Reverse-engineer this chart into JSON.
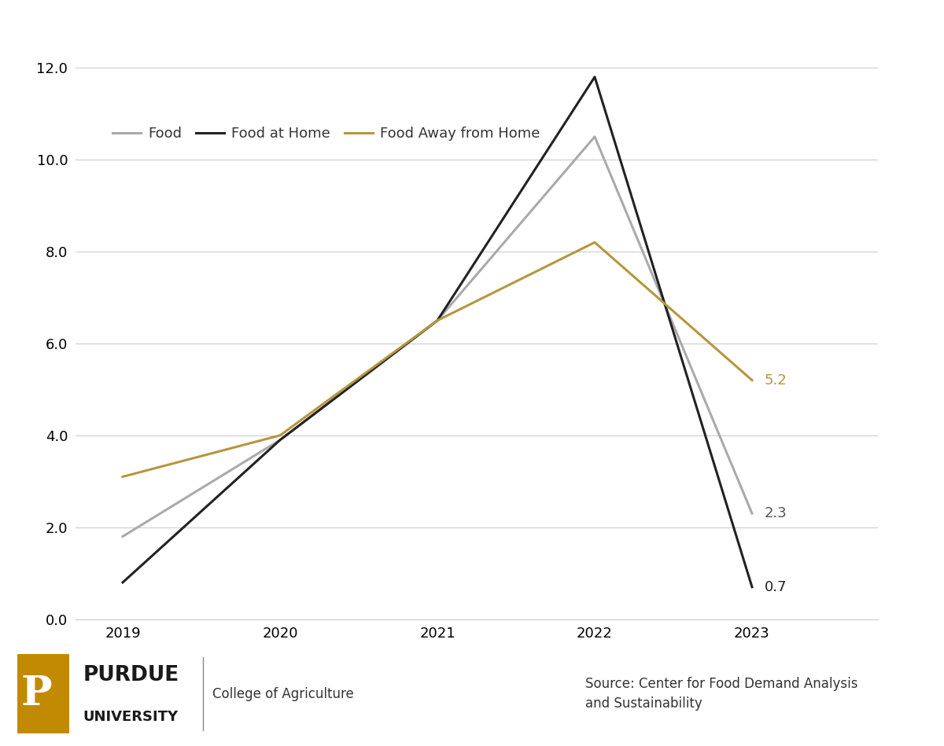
{
  "years": [
    2019,
    2020,
    2021,
    2022,
    2023
  ],
  "food": [
    1.8,
    3.9,
    6.5,
    10.5,
    2.3
  ],
  "food_at_home": [
    0.8,
    3.9,
    6.5,
    11.8,
    0.7
  ],
  "food_away_from_home": [
    3.1,
    4.0,
    6.5,
    8.2,
    5.2
  ],
  "food_color": "#aaaaaa",
  "food_at_home_color": "#222222",
  "food_away_from_home_color": "#b5973e",
  "legend_labels": [
    "Food",
    "Food at Home",
    "Food Away from Home"
  ],
  "end_labels": [
    {
      "series": "food_away_from_home",
      "value": 5.2,
      "label": "5.2"
    },
    {
      "series": "food",
      "value": 2.3,
      "label": "2.3"
    },
    {
      "series": "food_at_home",
      "value": 0.7,
      "label": "0.7"
    }
  ],
  "ylim": [
    0,
    12.5
  ],
  "yticks": [
    0.0,
    2.0,
    4.0,
    6.0,
    8.0,
    10.0,
    12.0
  ],
  "ytick_labels": [
    "0.0",
    "2.0",
    "4.0",
    "6.0",
    "8.0",
    "10.0",
    "12.0"
  ],
  "line_width": 2.2,
  "background_color": "#ffffff",
  "grid_color": "#cccccc",
  "source_text": "Source: Center for Food Demand Analysis\nand Sustainability",
  "tick_fontsize": 13,
  "legend_fontsize": 13,
  "annotation_fontsize": 13
}
